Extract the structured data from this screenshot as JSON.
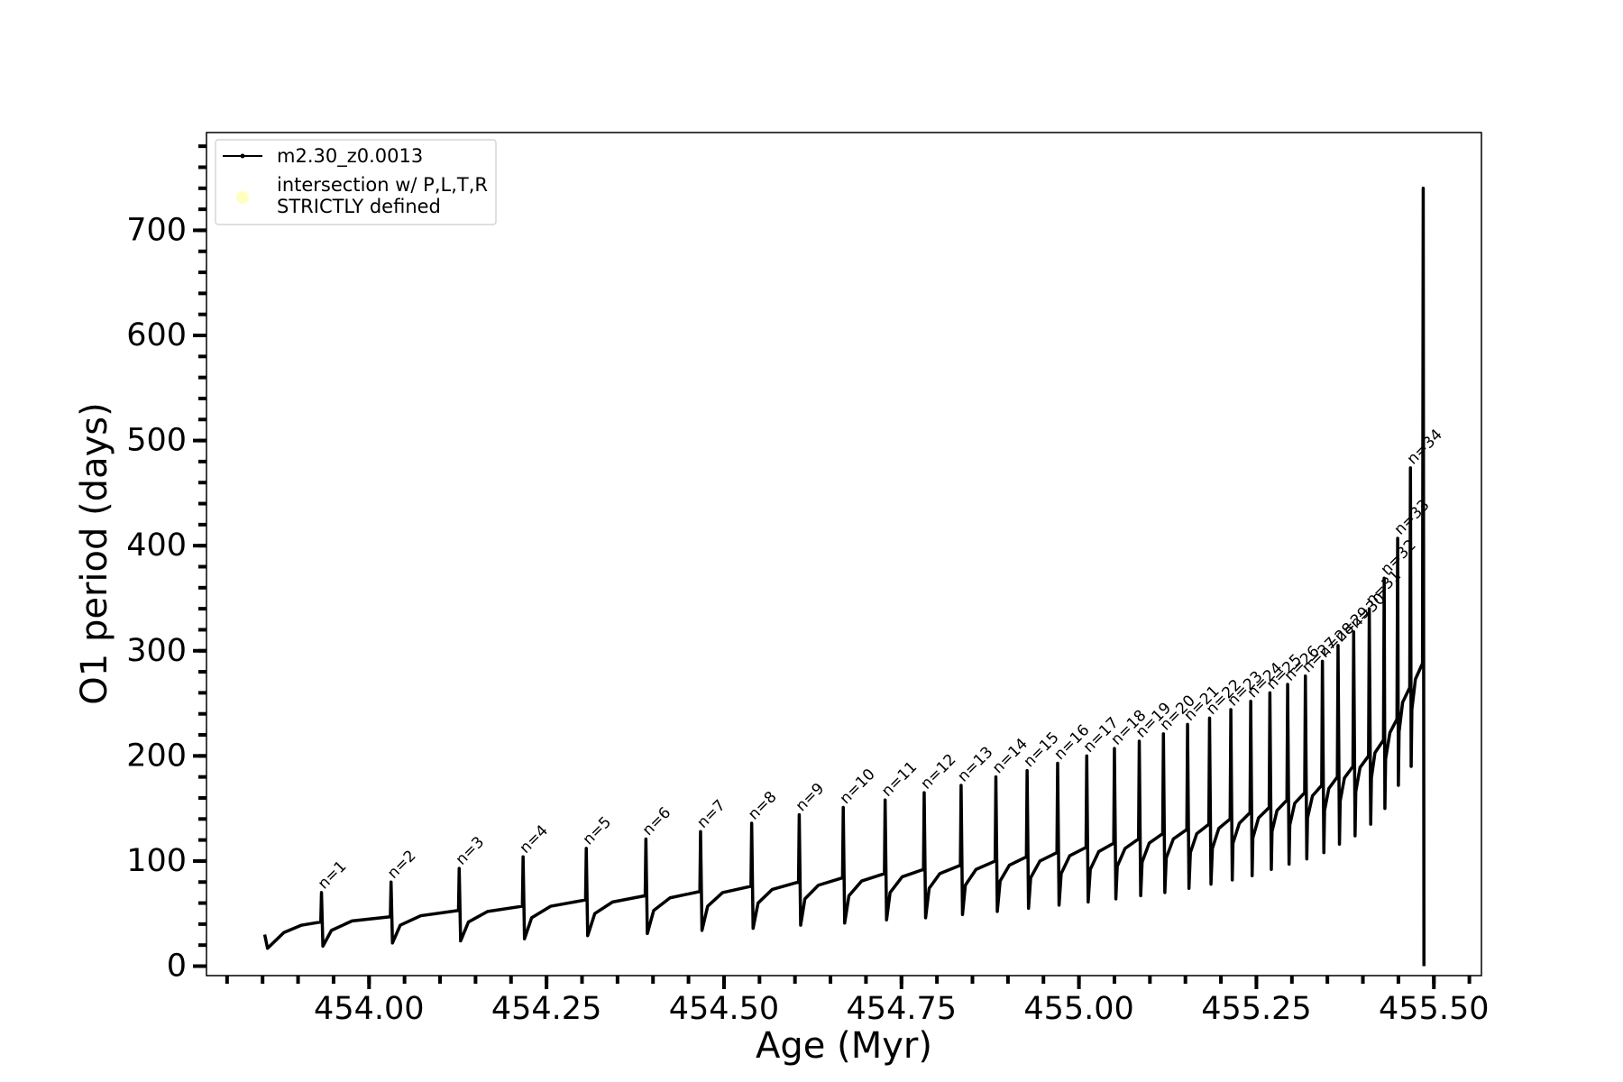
{
  "chart_data": {
    "type": "line",
    "xlabel": "Age (Myr)",
    "ylabel": "O1 period (days)",
    "xlim": [
      453.771,
      455.567
    ],
    "ylim": [
      -9,
      793
    ],
    "xticks": [
      {
        "value": 454.0,
        "label": "454.00"
      },
      {
        "value": 454.25,
        "label": "454.25"
      },
      {
        "value": 454.5,
        "label": "454.50"
      },
      {
        "value": 454.75,
        "label": "454.75"
      },
      {
        "value": 455.0,
        "label": "455.00"
      },
      {
        "value": 455.25,
        "label": "455.25"
      },
      {
        "value": 455.5,
        "label": "455.50"
      }
    ],
    "yticks": [
      0,
      100,
      200,
      300,
      400,
      500,
      600,
      700
    ],
    "legend_position": "upper left",
    "x": [
      453.853,
      453.857,
      453.88,
      453.905,
      453.932,
      453.933,
      453.935,
      453.947,
      453.976,
      454.03,
      454.031,
      454.033,
      454.044,
      454.073,
      454.126,
      454.127,
      454.129,
      454.14,
      454.167,
      454.216,
      454.217,
      454.219,
      454.229,
      454.256,
      454.305,
      454.306,
      454.308,
      454.318,
      454.343,
      454.389,
      454.39,
      454.392,
      454.401,
      454.424,
      454.466,
      454.467,
      454.469,
      454.477,
      454.498,
      454.538,
      454.539,
      454.541,
      454.548,
      454.568,
      454.605,
      454.606,
      454.608,
      454.614,
      454.633,
      454.667,
      454.668,
      454.67,
      454.676,
      454.694,
      454.726,
      454.727,
      454.729,
      454.734,
      454.751,
      454.781,
      454.782,
      454.784,
      454.789,
      454.804,
      454.833,
      454.834,
      454.836,
      454.84,
      454.855,
      454.882,
      454.883,
      454.885,
      454.889,
      454.902,
      454.926,
      454.927,
      454.929,
      454.932,
      454.945,
      454.969,
      454.97,
      454.972,
      454.975,
      454.987,
      455.01,
      455.011,
      455.013,
      455.016,
      455.028,
      455.049,
      455.05,
      455.052,
      455.054,
      455.065,
      455.084,
      455.085,
      455.087,
      455.089,
      455.099,
      455.118,
      455.119,
      455.121,
      455.123,
      455.133,
      455.152,
      455.153,
      455.155,
      455.157,
      455.166,
      455.183,
      455.184,
      455.186,
      455.188,
      455.197,
      455.213,
      455.214,
      455.216,
      455.217,
      455.226,
      455.241,
      455.242,
      455.244,
      455.245,
      455.253,
      455.268,
      455.269,
      455.271,
      455.272,
      455.279,
      455.293,
      455.294,
      455.296,
      455.297,
      455.304,
      455.318,
      455.319,
      455.321,
      455.322,
      455.329,
      455.342,
      455.343,
      455.345,
      455.346,
      455.352,
      455.364,
      455.365,
      455.367,
      455.368,
      455.374,
      455.386,
      455.387,
      455.389,
      455.39,
      455.396,
      455.408,
      455.409,
      455.411,
      455.412,
      455.417,
      455.429,
      455.43,
      455.431,
      455.432,
      455.438,
      455.448,
      455.449,
      455.45,
      455.451,
      455.456,
      455.466,
      455.467,
      455.468,
      455.469,
      455.474,
      455.484,
      455.485,
      455.486
    ],
    "series": [
      {
        "name": "m2.30_z0.0013",
        "color": "#000000",
        "values": [
          30,
          17,
          32,
          39,
          42,
          70,
          19,
          34,
          43,
          47,
          80,
          22,
          39,
          48,
          53,
          93,
          24,
          42,
          52,
          57,
          104,
          26,
          46,
          57,
          63,
          112,
          29,
          50,
          61,
          67,
          121,
          31,
          53,
          65,
          71,
          128,
          34,
          57,
          70,
          76,
          136,
          36,
          60,
          73,
          80,
          144,
          39,
          64,
          77,
          84,
          151,
          41,
          67,
          81,
          88,
          158,
          44,
          70,
          85,
          92,
          165,
          46,
          74,
          88,
          96,
          172,
          49,
          77,
          92,
          100,
          180,
          52,
          81,
          96,
          104,
          186,
          55,
          84,
          100,
          108,
          193,
          58,
          88,
          105,
          113,
          200,
          61,
          92,
          109,
          117,
          207,
          64,
          95,
          112,
          121,
          214,
          67,
          99,
          117,
          126,
          221,
          70,
          103,
          121,
          130,
          230,
          74,
          108,
          126,
          135,
          236,
          78,
          112,
          131,
          140,
          244,
          82,
          117,
          136,
          146,
          252,
          86,
          122,
          141,
          151,
          260,
          92,
          128,
          148,
          158,
          268,
          97,
          134,
          155,
          165,
          276,
          102,
          141,
          162,
          172,
          290,
          108,
          148,
          169,
          180,
          305,
          116,
          157,
          179,
          190,
          318,
          124,
          166,
          189,
          200,
          340,
          135,
          179,
          203,
          215,
          369,
          150,
          197,
          222,
          235,
          407,
          172,
          223,
          251,
          265,
          474,
          190,
          244,
          273,
          288,
          740,
          0
        ]
      },
      {
        "name": "intersection w/ P,L,T,R\nSTRICTLY defined",
        "color": "#ffffc2",
        "type": "scatter",
        "x": [],
        "values": []
      }
    ],
    "annotations": [
      "n=1",
      "n=2",
      "n=3",
      "n=4",
      "n=5",
      "n=6",
      "n=7",
      "n=8",
      "n=9",
      "n=10",
      "n=11",
      "n=12",
      "n=13",
      "n=14",
      "n=15",
      "n=16",
      "n=17",
      "n=18",
      "n=19",
      "n=20",
      "n=21",
      "n=22",
      "n=23",
      "n=24",
      "n=25",
      "n=26",
      "n=27",
      "n=28",
      "n=29",
      "n=30",
      "n=31",
      "n=32",
      "n=33",
      "n=34"
    ]
  }
}
